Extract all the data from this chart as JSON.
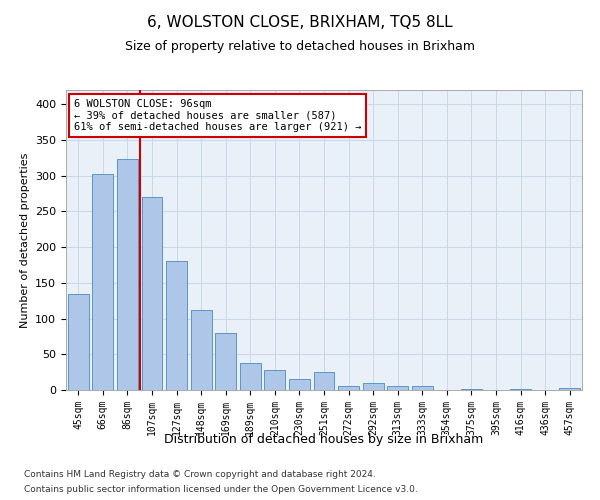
{
  "title1": "6, WOLSTON CLOSE, BRIXHAM, TQ5 8LL",
  "title2": "Size of property relative to detached houses in Brixham",
  "xlabel": "Distribution of detached houses by size in Brixham",
  "ylabel": "Number of detached properties",
  "categories": [
    "45sqm",
    "66sqm",
    "86sqm",
    "107sqm",
    "127sqm",
    "148sqm",
    "169sqm",
    "189sqm",
    "210sqm",
    "230sqm",
    "251sqm",
    "272sqm",
    "292sqm",
    "313sqm",
    "333sqm",
    "354sqm",
    "375sqm",
    "395sqm",
    "416sqm",
    "436sqm",
    "457sqm"
  ],
  "values": [
    135,
    303,
    323,
    270,
    180,
    112,
    80,
    38,
    28,
    15,
    25,
    5,
    10,
    5,
    5,
    0,
    2,
    0,
    2,
    0,
    3
  ],
  "bar_color": "#aec6e8",
  "bar_edge_color": "#5a96c8",
  "vline_x_index": 2,
  "marker_label": "6 WOLSTON CLOSE: 96sqm",
  "annotation_line1": "← 39% of detached houses are smaller (587)",
  "annotation_line2": "61% of semi-detached houses are larger (921) →",
  "vline_color": "#cc0000",
  "annotation_box_edge": "#cc0000",
  "annotation_box_face": "#ffffff",
  "grid_color": "#c8d8e8",
  "bg_color": "#eaf0f8",
  "footer1": "Contains HM Land Registry data © Crown copyright and database right 2024.",
  "footer2": "Contains public sector information licensed under the Open Government Licence v3.0.",
  "ylim": [
    0,
    420
  ],
  "yticks": [
    0,
    50,
    100,
    150,
    200,
    250,
    300,
    350,
    400
  ]
}
